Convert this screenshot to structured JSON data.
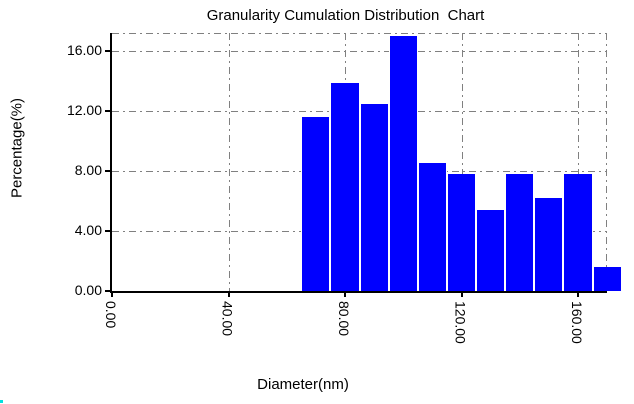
{
  "window": {
    "background_color": "#ffffff"
  },
  "chart_data": {
    "type": "bar",
    "title": "Granularity Cumulation Distribution  Chart",
    "xlabel": "Diameter(nm)",
    "ylabel": "Percentage(%)",
    "categories": [
      70,
      80,
      90,
      100,
      110,
      120,
      130,
      140,
      150,
      160,
      170
    ],
    "values": [
      11.6,
      13.9,
      12.5,
      17.0,
      8.55,
      7.8,
      5.4,
      7.8,
      6.2,
      7.8,
      1.6
    ],
    "bar_width_x_units": 10,
    "x_ticks": [
      0,
      40,
      80,
      120,
      160
    ],
    "x_tick_labels": [
      "0.00",
      "40.00",
      "80.00",
      "120.00",
      "160.00"
    ],
    "y_ticks": [
      0,
      4,
      8,
      12,
      16
    ],
    "y_tick_labels": [
      "0.00",
      "4.00",
      "8.00",
      "12.00",
      "16.00"
    ],
    "xlim": [
      0,
      170
    ],
    "ylim": [
      0,
      17.2
    ],
    "grid": "dash-dot",
    "legend": "none",
    "x_tick_label_rotation_deg": 90,
    "bar_color": "#0000ff",
    "grid_color": "#808080",
    "axis_color": "#000000"
  },
  "colors": {
    "bar": "#0000ff",
    "grid": "#808080",
    "axis": "#000000",
    "background": "#ffffff",
    "corner_artifact": "#00e0e0"
  }
}
